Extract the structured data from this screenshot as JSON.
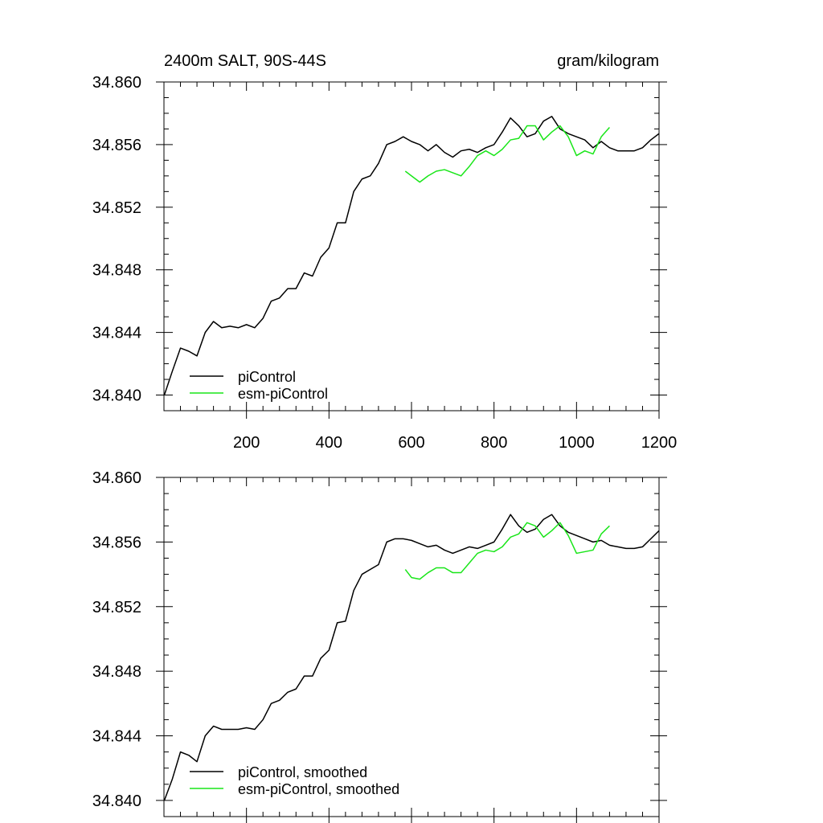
{
  "chart_data": [
    {
      "type": "line",
      "title_left": "2400m SALT, 90S-44S",
      "title_right": "gram/kilogram",
      "xlim": [
        0,
        1200
      ],
      "ylim": [
        34.839,
        34.86
      ],
      "x_ticks": [
        200,
        400,
        600,
        800,
        1000,
        1200
      ],
      "y_ticks": [
        34.84,
        34.844,
        34.848,
        34.852,
        34.856,
        34.86
      ],
      "y_tick_labels": [
        "34.840",
        "34.844",
        "34.848",
        "34.852",
        "34.856",
        "34.860"
      ],
      "x_tick_labels": [
        "200",
        "400",
        "600",
        "800",
        "1000",
        "1200"
      ],
      "legend": "bottom-left",
      "series": [
        {
          "name": "piControl",
          "color": "#000000",
          "x": [
            1,
            20,
            40,
            60,
            80,
            100,
            120,
            140,
            160,
            180,
            200,
            220,
            240,
            260,
            280,
            300,
            320,
            340,
            360,
            380,
            400,
            420,
            440,
            460,
            480,
            500,
            520,
            540,
            560,
            580,
            600,
            620,
            640,
            660,
            680,
            700,
            720,
            740,
            760,
            780,
            800,
            820,
            840,
            860,
            880,
            900,
            920,
            940,
            960,
            980,
            1000,
            1020,
            1040,
            1060,
            1080,
            1100,
            1120,
            1140,
            1160,
            1180,
            1200
          ],
          "y": [
            34.84,
            34.8415,
            34.843,
            34.8428,
            34.8425,
            34.844,
            34.8447,
            34.8443,
            34.8444,
            34.8443,
            34.8445,
            34.8443,
            34.8449,
            34.846,
            34.8462,
            34.8468,
            34.8468,
            34.8478,
            34.8476,
            34.8488,
            34.8494,
            34.851,
            34.851,
            34.853,
            34.8538,
            34.854,
            34.8548,
            34.856,
            34.8562,
            34.8565,
            34.8562,
            34.856,
            34.8556,
            34.856,
            34.8555,
            34.8552,
            34.8556,
            34.8557,
            34.8555,
            34.8558,
            34.856,
            34.8568,
            34.8577,
            34.8572,
            34.8565,
            34.8567,
            34.8575,
            34.8578,
            34.857,
            34.8567,
            34.8565,
            34.8563,
            34.8558,
            34.8562,
            34.8558,
            34.8556,
            34.8556,
            34.8556,
            34.8558,
            34.8563,
            34.8567
          ]
        },
        {
          "name": "esm-piControl",
          "color": "#19e619",
          "x": [
            585,
            600,
            620,
            640,
            660,
            680,
            700,
            720,
            740,
            760,
            780,
            800,
            820,
            840,
            860,
            880,
            900,
            920,
            940,
            960,
            980,
            1000,
            1020,
            1040,
            1060,
            1080
          ],
          "y": [
            34.8543,
            34.854,
            34.8536,
            34.854,
            34.8543,
            34.8544,
            34.8542,
            34.854,
            34.8546,
            34.8553,
            34.8556,
            34.8553,
            34.8557,
            34.8563,
            34.8564,
            34.8572,
            34.8572,
            34.8563,
            34.8568,
            34.8572,
            34.8565,
            34.8553,
            34.8556,
            34.8554,
            34.8565,
            34.8571
          ]
        }
      ]
    },
    {
      "type": "line",
      "xlim": [
        0,
        1200
      ],
      "ylim": [
        34.839,
        34.86
      ],
      "x_ticks": [
        200,
        400,
        600,
        800,
        1000,
        1200
      ],
      "y_ticks": [
        34.84,
        34.844,
        34.848,
        34.852,
        34.856,
        34.86
      ],
      "y_tick_labels": [
        "34.840",
        "34.844",
        "34.848",
        "34.852",
        "34.856",
        "34.860"
      ],
      "legend": "bottom-left",
      "series": [
        {
          "name": "piControl, smoothed",
          "color": "#000000",
          "x": [
            1,
            20,
            40,
            60,
            80,
            100,
            120,
            140,
            160,
            180,
            200,
            220,
            240,
            260,
            280,
            300,
            320,
            340,
            360,
            380,
            400,
            420,
            440,
            460,
            480,
            500,
            520,
            540,
            560,
            580,
            600,
            620,
            640,
            660,
            680,
            700,
            720,
            740,
            760,
            780,
            800,
            820,
            840,
            860,
            880,
            900,
            920,
            940,
            960,
            980,
            1000,
            1020,
            1040,
            1060,
            1080,
            1100,
            1120,
            1140,
            1160,
            1180,
            1200
          ],
          "y": [
            34.84,
            34.8413,
            34.843,
            34.8428,
            34.8424,
            34.844,
            34.8446,
            34.8444,
            34.8444,
            34.8444,
            34.8445,
            34.8444,
            34.845,
            34.846,
            34.8462,
            34.8467,
            34.8469,
            34.8477,
            34.8477,
            34.8488,
            34.8493,
            34.851,
            34.8511,
            34.853,
            34.854,
            34.8543,
            34.8546,
            34.856,
            34.8562,
            34.8562,
            34.8561,
            34.8559,
            34.8557,
            34.8558,
            34.8555,
            34.8553,
            34.8555,
            34.8557,
            34.8556,
            34.8558,
            34.856,
            34.8568,
            34.8577,
            34.857,
            34.8566,
            34.8568,
            34.8574,
            34.8577,
            34.857,
            34.8566,
            34.8564,
            34.8562,
            34.856,
            34.8561,
            34.8558,
            34.8557,
            34.8556,
            34.8556,
            34.8557,
            34.8562,
            34.8567
          ]
        },
        {
          "name": "esm-piControl, smoothed",
          "color": "#19e619",
          "x": [
            585,
            600,
            620,
            640,
            660,
            680,
            700,
            720,
            740,
            760,
            780,
            800,
            820,
            840,
            860,
            880,
            900,
            920,
            940,
            960,
            980,
            1000,
            1020,
            1040,
            1060,
            1080
          ],
          "y": [
            34.8543,
            34.8538,
            34.8537,
            34.8541,
            34.8544,
            34.8544,
            34.8541,
            34.8541,
            34.8547,
            34.8553,
            34.8555,
            34.8554,
            34.8557,
            34.8563,
            34.8565,
            34.8572,
            34.857,
            34.8563,
            34.8567,
            34.8572,
            34.8564,
            34.8553,
            34.8554,
            34.8555,
            34.8565,
            34.857
          ]
        }
      ]
    }
  ]
}
